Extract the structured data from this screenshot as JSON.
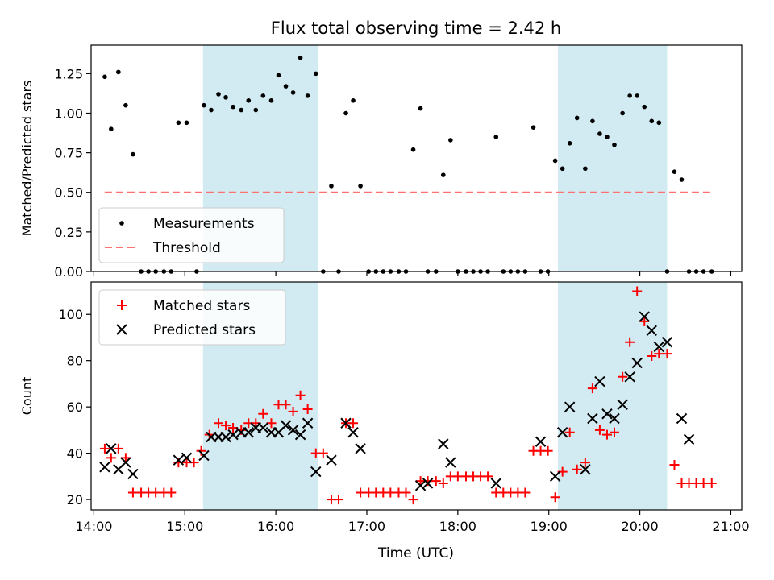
{
  "figure": {
    "title": "Flux total observing time = 2.42 h",
    "xlabel": "Time (UTC)",
    "x_ticks": [
      "14:00",
      "15:00",
      "16:00",
      "17:00",
      "18:00",
      "19:00",
      "20:00",
      "21:00"
    ],
    "x_tick_hours": [
      14,
      15,
      16,
      17,
      18,
      19,
      20,
      21
    ],
    "x_range_hours": [
      13.97,
      21.12
    ],
    "shaded_intervals_hours": [
      [
        15.2,
        16.46
      ],
      [
        19.1,
        20.3
      ]
    ],
    "shade_color": "#add8e6"
  },
  "chart_data": [
    {
      "type": "scatter",
      "ylabel": "Matched/Predicted stars",
      "ylim": [
        0,
        1.43
      ],
      "y_ticks": [
        0.0,
        0.25,
        0.5,
        0.75,
        1.0,
        1.25
      ],
      "y_tick_labels": [
        "0.00",
        "0.25",
        "0.50",
        "0.75",
        "1.00",
        "1.25"
      ],
      "legend_position": "bottom-left",
      "series": [
        {
          "name": "Measurements",
          "marker": "dot",
          "color": "#000000",
          "x": [
            14.12,
            14.19,
            14.27,
            14.35,
            14.43,
            14.52,
            14.6,
            14.68,
            14.77,
            14.85,
            14.93,
            15.02,
            15.13,
            15.21,
            15.29,
            15.37,
            15.45,
            15.53,
            15.62,
            15.7,
            15.78,
            15.86,
            15.95,
            16.03,
            16.11,
            16.19,
            16.27,
            16.35,
            16.44,
            16.52,
            16.61,
            16.69,
            16.77,
            16.85,
            16.93,
            17.02,
            17.1,
            17.18,
            17.26,
            17.35,
            17.43,
            17.51,
            17.59,
            17.67,
            17.76,
            17.84,
            17.92,
            18.0,
            18.09,
            18.17,
            18.25,
            18.33,
            18.42,
            18.5,
            18.58,
            18.66,
            18.74,
            18.83,
            18.91,
            18.99,
            19.07,
            19.15,
            19.23,
            19.31,
            19.4,
            19.48,
            19.56,
            19.64,
            19.72,
            19.81,
            19.89,
            19.97,
            20.05,
            20.13,
            20.21,
            20.3,
            20.38,
            20.46,
            20.54,
            20.62,
            20.7,
            20.79
          ],
          "y": [
            1.23,
            0.9,
            1.26,
            1.05,
            0.74,
            0,
            0,
            0,
            0,
            0,
            0.94,
            0.94,
            0,
            1.05,
            1.02,
            1.12,
            1.1,
            1.04,
            1.02,
            1.08,
            1.02,
            1.11,
            1.08,
            1.24,
            1.17,
            1.13,
            1.35,
            1.11,
            1.25,
            0,
            0.54,
            0,
            1.0,
            1.08,
            0.54,
            0,
            0,
            0,
            0,
            0,
            0,
            0.77,
            1.03,
            0,
            0,
            0.61,
            0.83,
            0,
            0,
            0,
            0,
            0,
            0.85,
            0,
            0,
            0,
            0,
            0.91,
            0,
            0,
            0.7,
            0.65,
            0.81,
            0.97,
            0.65,
            0.95,
            0.87,
            0.85,
            0.8,
            1.0,
            1.11,
            1.11,
            1.04,
            0.95,
            0.94,
            0,
            0.63,
            0.58,
            0,
            0,
            0,
            0
          ]
        },
        {
          "name": "Threshold",
          "marker": "dashed-line",
          "color": "#ff7070",
          "x": [
            14.12,
            20.79
          ],
          "y": [
            0.5,
            0.5
          ]
        }
      ]
    },
    {
      "type": "scatter",
      "ylabel": "Count",
      "ylim": [
        15.5,
        114
      ],
      "y_ticks": [
        20,
        40,
        60,
        80,
        100
      ],
      "y_tick_labels": [
        "20",
        "40",
        "60",
        "80",
        "100"
      ],
      "legend_position": "top-left",
      "series": [
        {
          "name": "Matched stars",
          "marker": "plus",
          "color": "#ff0000",
          "x": [
            14.12,
            14.19,
            14.27,
            14.35,
            14.43,
            14.52,
            14.6,
            14.68,
            14.77,
            14.85,
            14.93,
            15.02,
            15.1,
            15.18,
            15.27,
            15.37,
            15.45,
            15.53,
            15.62,
            15.7,
            15.78,
            15.86,
            15.95,
            16.03,
            16.11,
            16.19,
            16.27,
            16.35,
            16.44,
            16.52,
            16.61,
            16.69,
            16.77,
            16.85,
            16.93,
            17.02,
            17.1,
            17.18,
            17.26,
            17.35,
            17.43,
            17.51,
            17.59,
            17.67,
            17.76,
            17.84,
            17.92,
            18.0,
            18.09,
            18.17,
            18.25,
            18.33,
            18.42,
            18.5,
            18.58,
            18.66,
            18.74,
            18.83,
            18.91,
            18.99,
            19.07,
            19.15,
            19.23,
            19.31,
            19.4,
            19.48,
            19.56,
            19.64,
            19.72,
            19.81,
            19.89,
            19.97,
            20.05,
            20.13,
            20.21,
            20.3,
            20.38,
            20.46,
            20.54,
            20.62,
            20.7,
            20.79
          ],
          "y": [
            42,
            38,
            42,
            38,
            23,
            23,
            23,
            23,
            23,
            23,
            36,
            36,
            36,
            41,
            48,
            53,
            52,
            51,
            50,
            53,
            53,
            57,
            53,
            61,
            61,
            58,
            65,
            59,
            40,
            40,
            20,
            20,
            53,
            53,
            23,
            23,
            23,
            23,
            23,
            23,
            23,
            20,
            28,
            28,
            28,
            27,
            30,
            30,
            30,
            30,
            30,
            30,
            23,
            23,
            23,
            23,
            23,
            41,
            41,
            41,
            21,
            32,
            49,
            33,
            36,
            68,
            50,
            48,
            49,
            73,
            88,
            110,
            97,
            82,
            83,
            83,
            35,
            27,
            27,
            27,
            27,
            27
          ]
        },
        {
          "name": "Predicted stars",
          "marker": "x",
          "color": "#000000",
          "x": [
            14.12,
            14.19,
            14.27,
            14.35,
            14.43,
            14.93,
            15.02,
            15.21,
            15.29,
            15.37,
            15.45,
            15.53,
            15.62,
            15.7,
            15.78,
            15.86,
            15.95,
            16.03,
            16.11,
            16.19,
            16.27,
            16.35,
            16.44,
            16.61,
            16.77,
            16.85,
            16.93,
            17.59,
            17.67,
            17.84,
            17.92,
            18.42,
            18.91,
            19.07,
            19.15,
            19.23,
            19.4,
            19.48,
            19.56,
            19.64,
            19.72,
            19.81,
            19.89,
            19.97,
            20.05,
            20.13,
            20.21,
            20.3,
            20.46,
            20.54
          ],
          "y": [
            34,
            42,
            33,
            36,
            31,
            37,
            38,
            39,
            47,
            47,
            47,
            48,
            49,
            49,
            51,
            51,
            49,
            49,
            52,
            50,
            48,
            53,
            32,
            37,
            53,
            49,
            42,
            26,
            27,
            44,
            36,
            27,
            45,
            30,
            49,
            60,
            33,
            55,
            71,
            57,
            55,
            61,
            73,
            79,
            99,
            93,
            86,
            88,
            55,
            46
          ]
        }
      ]
    }
  ]
}
